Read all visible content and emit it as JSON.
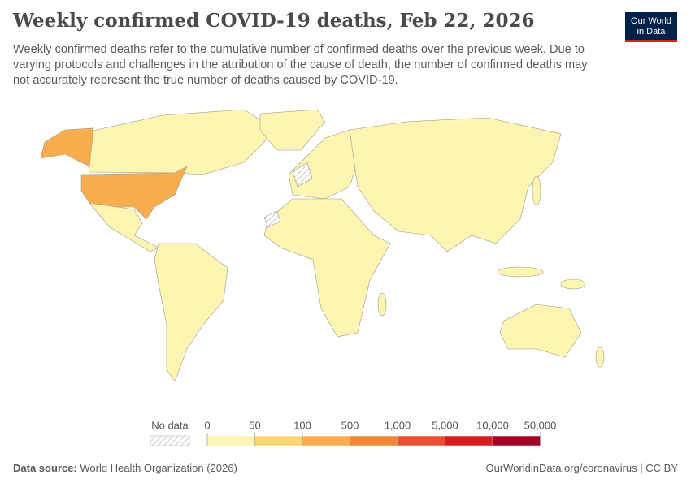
{
  "header": {
    "title": "Weekly confirmed COVID-19 deaths, Feb 22, 2026",
    "subtitle": "Weekly confirmed deaths refer to the cumulative number of confirmed deaths over the previous week. Due to varying protocols and challenges in the attribution of the cause of death, the number of confirmed deaths may not accurately represent the true number of deaths caused by COVID-19."
  },
  "logo": {
    "line1": "Our World",
    "line2": "in Data"
  },
  "legend": {
    "no_data": "No data",
    "bins": [
      0,
      50,
      100,
      500,
      {
        "value": 1000,
        "label": "1,000"
      },
      {
        "value": 5000,
        "label": "5,000"
      },
      {
        "value": 10000,
        "label": "10,000"
      },
      {
        "value": 50000,
        "label": "50,000"
      }
    ],
    "colors": [
      "#fdf5b1",
      "#fcd473",
      "#f9ad4f",
      "#f08838",
      "#e9502f",
      "#d41f1f",
      "#a50026"
    ]
  },
  "footer": {
    "source_label": "Data source:",
    "source": "World Health Organization (2026)",
    "link": "OurWorldinData.org/coronavirus | CC BY"
  }
}
